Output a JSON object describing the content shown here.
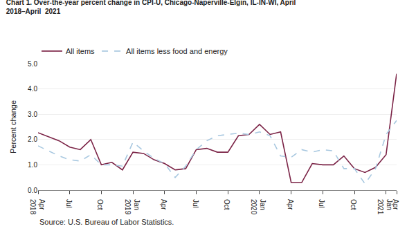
{
  "chart_data": {
    "type": "line",
    "title": "Chart 1. Over-the-year percent change in CPI-U, Chicago-Naperville-Elgin, IL-IN-WI, April\n2018–April  2021",
    "y_label": "Percent change",
    "annotations": [
      "Source: U.S. Bureau of Labor Statistics."
    ],
    "categories": [
      "Apr\n2018",
      null,
      null,
      "Jul",
      null,
      null,
      "Oct",
      null,
      null,
      "Jan\n2019",
      null,
      null,
      "Apr",
      null,
      null,
      "Jul",
      null,
      null,
      "Oct",
      null,
      null,
      "Jan\n2020",
      null,
      null,
      "Apr",
      null,
      null,
      "Jul",
      null,
      null,
      "Oct",
      null,
      null,
      "Jan\n2021",
      "Apr"
    ],
    "series": [
      {
        "name": "All items",
        "color": "#7b2346",
        "line_style": "solid",
        "values": [
          2.27,
          2.1,
          1.95,
          1.7,
          1.6,
          2.0,
          1.0,
          1.1,
          0.8,
          1.5,
          1.45,
          1.2,
          1.05,
          0.8,
          0.85,
          1.6,
          1.65,
          1.5,
          1.5,
          2.15,
          2.2,
          2.6,
          2.2,
          2.3,
          0.3,
          0.3,
          1.05,
          1.0,
          1.0,
          1.35,
          0.85,
          0.7,
          0.9,
          1.4,
          4.6
        ]
      },
      {
        "name": "All items less food and energy",
        "color": "#a8c8e0",
        "line_style": "dashed",
        "values": [
          1.75,
          1.55,
          1.35,
          1.2,
          1.15,
          1.4,
          1.0,
          1.0,
          0.95,
          1.9,
          1.55,
          1.25,
          1.05,
          0.5,
          0.95,
          1.6,
          1.95,
          2.15,
          2.2,
          2.25,
          2.2,
          2.3,
          2.15,
          1.35,
          1.3,
          1.6,
          1.5,
          1.6,
          1.55,
          0.85,
          0.85,
          0.25,
          0.85,
          2.2,
          2.75
        ]
      }
    ],
    "ylim": [
      0.0,
      5.0
    ],
    "yticks": [
      {
        "value": 0.0,
        "label": "0.0"
      },
      {
        "value": 1.0,
        "label": "1.0"
      },
      {
        "value": 2.0,
        "label": "2.0"
      },
      {
        "value": 3.0,
        "label": "3.0"
      },
      {
        "value": 4.0,
        "label": "4.0"
      },
      {
        "value": 5.0,
        "label": "5.0"
      }
    ],
    "grid": true,
    "legend": "top"
  }
}
